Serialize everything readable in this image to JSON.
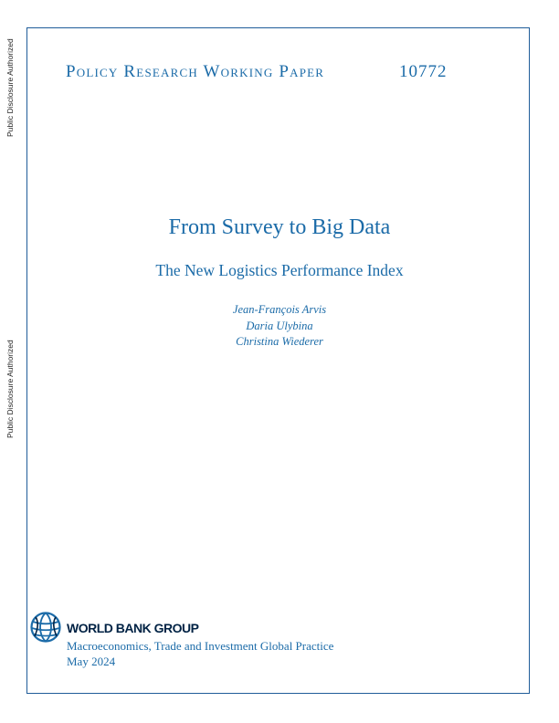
{
  "disclosure": {
    "top": "Public Disclosure Authorized",
    "middle": "Public Disclosure Authorized"
  },
  "header": {
    "series": "Policy Research Working Paper",
    "number": "10772"
  },
  "title": "From Survey to Big Data",
  "subtitle": "The New Logistics Performance Index",
  "authors": [
    "Jean-François Arvis",
    "Daria Ulybina",
    "Christina Wiederer"
  ],
  "publisher": {
    "logo_icon": "world-bank-globe-icon",
    "name": "WORLD BANK GROUP",
    "practice": "Macroeconomics, Trade and Investment Global Practice",
    "date": "May 2024"
  },
  "colors": {
    "accent": "#1b6ba8",
    "logo_dark": "#002244",
    "frame": "#1f5c99"
  }
}
